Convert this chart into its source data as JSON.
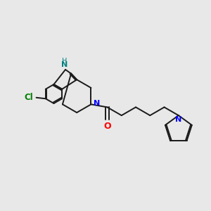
{
  "background_color": "#e8e8e8",
  "bond_color": "#1a1a1a",
  "N_color": "#0000ff",
  "NH_color": "#008080",
  "O_color": "#ff0000",
  "Cl_color": "#008000",
  "bond_lw": 1.4,
  "figsize": [
    3.0,
    3.0
  ],
  "dpi": 100,
  "xlim": [
    0,
    10
  ],
  "ylim": [
    0,
    10
  ]
}
